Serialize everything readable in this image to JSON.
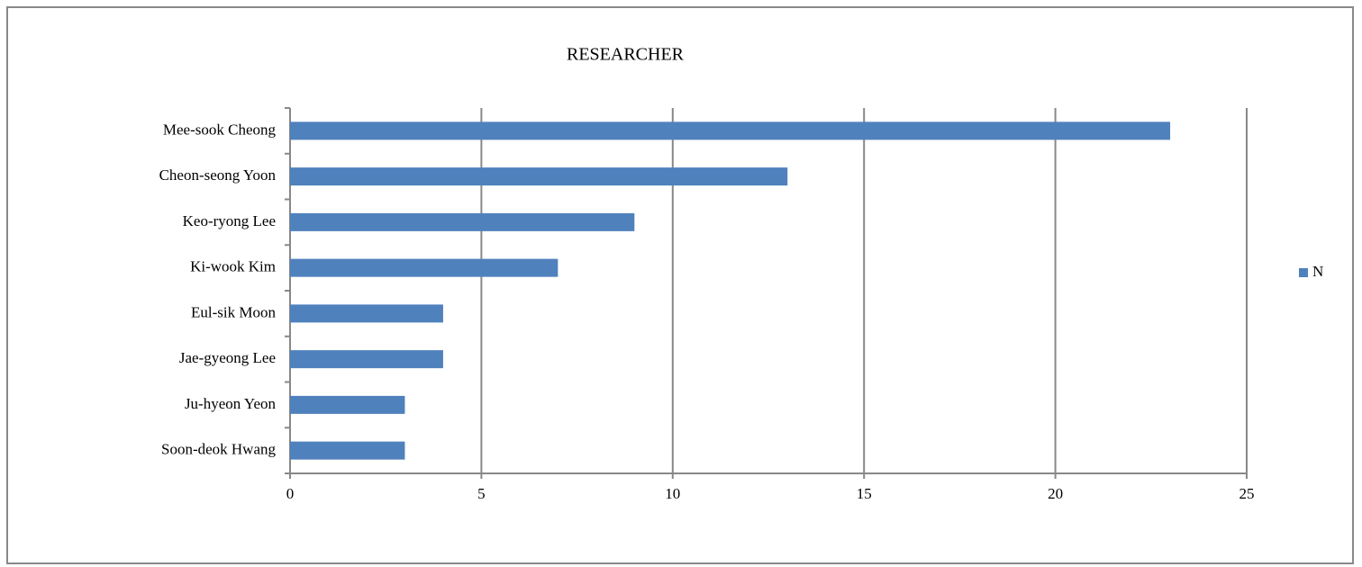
{
  "chart_data": {
    "type": "bar",
    "orientation": "horizontal",
    "title": "RESEARCHER",
    "categories": [
      "Mee-sook Cheong",
      "Cheon-seong Yoon",
      "Keo-ryong Lee",
      "Ki-wook Kim",
      "Eul-sik Moon",
      "Jae-gyeong Lee",
      "Ju-hyeon Yeon",
      "Soon-deok Hwang"
    ],
    "series": [
      {
        "name": "N",
        "color": "#4f81bd",
        "values": [
          23,
          13,
          9,
          7,
          4,
          4,
          3,
          3
        ]
      }
    ],
    "xlim": [
      0,
      25
    ],
    "xticks": [
      0,
      5,
      10,
      15,
      20,
      25
    ],
    "grid": true,
    "legend": "right"
  }
}
